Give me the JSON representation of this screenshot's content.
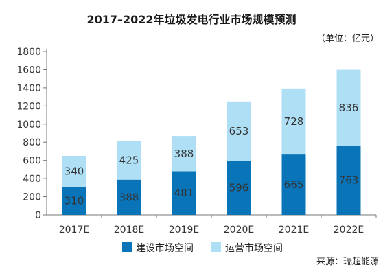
{
  "chart_data": {
    "type": "bar",
    "stacked": true,
    "title": "2017–2022年垃圾发电行业市场规模预测",
    "unit": "（单位：亿元）",
    "categories": [
      "2017E",
      "2018E",
      "2019E",
      "2020E",
      "2021E",
      "2022E"
    ],
    "series": [
      {
        "name": "建设市场空间",
        "values": [
          310,
          388,
          481,
          596,
          665,
          763
        ],
        "color": "#0a74b8",
        "label_color": "#1f2f3f"
      },
      {
        "name": "运营市场空间",
        "values": [
          340,
          425,
          388,
          653,
          728,
          836
        ],
        "color": "#aedff5",
        "label_color": "#333333"
      }
    ],
    "ylim": [
      0,
      1800
    ],
    "yticks": [
      0,
      200,
      400,
      600,
      800,
      1000,
      1200,
      1400,
      1600,
      1800
    ],
    "grid": false,
    "legend_position": "bottom-center",
    "source": "来源：瑞超能源"
  }
}
